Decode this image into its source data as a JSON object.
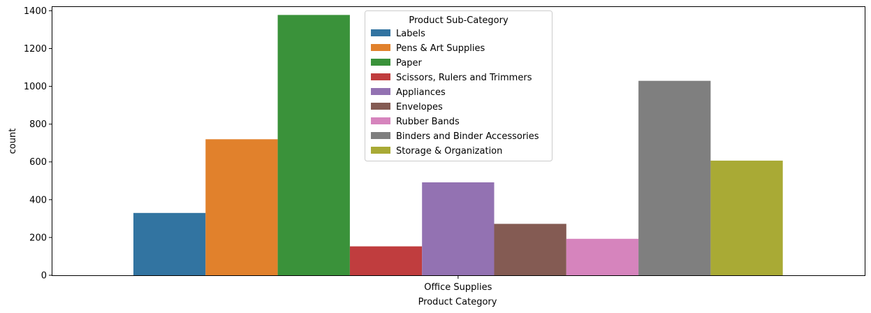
{
  "chart_data": {
    "type": "bar",
    "xlabel": "Product Category",
    "ylabel": "count",
    "categories": [
      "Office Supplies"
    ],
    "ylim": [
      0,
      1420
    ],
    "yticks": [
      0,
      200,
      400,
      600,
      800,
      1000,
      1200,
      1400
    ],
    "grid": false,
    "legend": {
      "title": "Product Sub-Category",
      "placement": "top-center"
    },
    "series": [
      {
        "name": "Labels",
        "values": [
          330
        ],
        "color": "#3274a1"
      },
      {
        "name": "Pens & Art Supplies",
        "values": [
          720
        ],
        "color": "#e1812c"
      },
      {
        "name": "Paper",
        "values": [
          1378
        ],
        "color": "#3a923a"
      },
      {
        "name": "Scissors, Rulers and Trimmers",
        "values": [
          153
        ],
        "color": "#c03d3e"
      },
      {
        "name": "Appliances",
        "values": [
          492
        ],
        "color": "#9372b2"
      },
      {
        "name": "Envelopes",
        "values": [
          272
        ],
        "color": "#845b53"
      },
      {
        "name": "Rubber Bands",
        "values": [
          193
        ],
        "color": "#d684bd"
      },
      {
        "name": "Binders and Binder Accessories",
        "values": [
          1029
        ],
        "color": "#7f7f7f"
      },
      {
        "name": "Storage & Organization",
        "values": [
          607
        ],
        "color": "#a9aa35"
      }
    ]
  }
}
